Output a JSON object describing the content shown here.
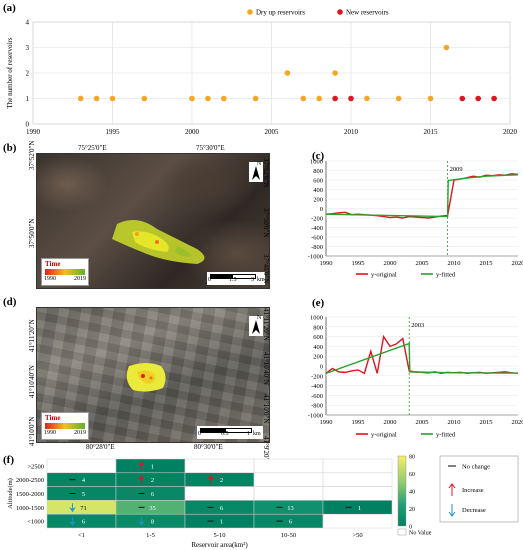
{
  "panel_a": {
    "label": "(a)",
    "legend": [
      {
        "name": "Dry up reservoirs",
        "color": "#f5a623"
      },
      {
        "name": "New reservoirs",
        "color": "#e0141e"
      }
    ],
    "ylabel": "The number of reservoirs",
    "yticks": [
      "0",
      "1",
      "2",
      "3",
      "4"
    ],
    "xticks": [
      "1990",
      "1995",
      "2000",
      "2005",
      "2010",
      "2015",
      "2020"
    ],
    "xlim": [
      1990,
      2020
    ],
    "ylim": [
      0,
      4
    ]
  },
  "panel_b": {
    "label": "(b)",
    "top_ticks": [
      "75°25'0\"E",
      "75°30'0\"E"
    ],
    "left_ticks": [
      "37°52'0\"N",
      "37°50'0\"N"
    ],
    "right_ticks": [
      "37°52'0\"N",
      "37°50'0\"N",
      "37°48'0\"N"
    ],
    "time_title": "Time",
    "time_start": "1990",
    "time_end": "2019",
    "scale_labels": [
      "0",
      "1.5",
      "3"
    ],
    "scale_unit": "km",
    "north": "N"
  },
  "panel_c": {
    "label": "(c)",
    "marker_year": "2009"
  },
  "panel_d": {
    "label": "(d)",
    "bottom_ticks": [
      "80°28'0\"E",
      "80°30'0\"E"
    ],
    "left_ticks": [
      "41°11'20\"N",
      "41°10'40\"N",
      "41°10'0\"N"
    ],
    "right_ticks": [
      "41°11'20\"N",
      "41°10'40\"N",
      "41°10'0\"N",
      "41°9'20\"N"
    ],
    "time_title": "Time",
    "time_start": "1990",
    "time_end": "2019",
    "scale_labels": [
      "0",
      "0.5",
      "1"
    ],
    "scale_unit": "km",
    "north": "N"
  },
  "panel_e": {
    "label": "(e)",
    "marker_year": "2003"
  },
  "panel_f": {
    "label": "(f)",
    "ylabel": "Altitude(m)",
    "xlabel": "Reservoir area(km²)",
    "rows": [
      ">2500",
      "2000-2500",
      "1500-2000",
      "1000-1500",
      "<1000"
    ],
    "cols": [
      "<1",
      "1-5",
      "5-10",
      "10-50",
      ">50"
    ],
    "colorbar_ticks": [
      "80",
      "60",
      "40",
      "20",
      "0"
    ],
    "legend": {
      "no_change": "No change",
      "increase": "Increase",
      "decrease": "Decrease",
      "no_value": "No Value"
    }
  },
  "chart_data": [
    {
      "type": "scatter",
      "title": "",
      "xlabel": "",
      "ylabel": "The number of reservoirs",
      "xlim": [
        1990,
        2020
      ],
      "ylim": [
        0,
        4
      ],
      "grid": true,
      "legend": "top",
      "series": [
        {
          "name": "Dry up reservoirs",
          "color": "#f5a623",
          "points": [
            [
              1993,
              1
            ],
            [
              1994,
              1
            ],
            [
              1995,
              1
            ],
            [
              1997,
              1
            ],
            [
              2000,
              1
            ],
            [
              2001,
              1
            ],
            [
              2002,
              1
            ],
            [
              2004,
              1
            ],
            [
              2006,
              2
            ],
            [
              2007,
              1
            ],
            [
              2008,
              1
            ],
            [
              2009,
              2
            ],
            [
              2011,
              1
            ],
            [
              2013,
              1
            ],
            [
              2015,
              1
            ],
            [
              2016,
              3
            ]
          ]
        },
        {
          "name": "New reservoirs",
          "color": "#e0141e",
          "points": [
            [
              2009,
              1
            ],
            [
              2010,
              1
            ],
            [
              2017,
              1
            ],
            [
              2018,
              1
            ],
            [
              2019,
              1
            ]
          ]
        }
      ]
    },
    {
      "type": "line",
      "title": "",
      "xlim": [
        1990,
        2020
      ],
      "ylim": [
        -1000,
        1000
      ],
      "xticks": [
        "1990",
        "1995",
        "2000",
        "2005",
        "2010",
        "2015",
        "2020"
      ],
      "yticks": [
        "1000",
        "800",
        "600",
        "400",
        "200",
        "0",
        "-200",
        "-400",
        "-600",
        "-800",
        "-1000"
      ],
      "legend": "bottom",
      "series": [
        {
          "name": "y-original",
          "color": "#e0141e",
          "x": [
            1990,
            1991,
            1992,
            1993,
            1994,
            1995,
            1996,
            1997,
            1998,
            1999,
            2000,
            2001,
            2002,
            2003,
            2004,
            2005,
            2006,
            2007,
            2008,
            2009,
            2010,
            2011,
            2012,
            2013,
            2014,
            2015,
            2016,
            2017,
            2018,
            2019,
            2020
          ],
          "values": [
            -120,
            -110,
            -90,
            -80,
            -130,
            -120,
            -130,
            -140,
            -150,
            -170,
            -190,
            -180,
            -200,
            -170,
            -180,
            -190,
            -200,
            -180,
            -160,
            -150,
            600,
            620,
            650,
            680,
            660,
            700,
            690,
            710,
            700,
            730,
            720
          ]
        },
        {
          "name": "y-fitted",
          "color": "#2ca02c",
          "x": [
            1990,
            2009,
            2009.1,
            2012,
            2015,
            2018,
            2020
          ],
          "values": [
            -120,
            -170,
            590,
            640,
            680,
            700,
            710
          ]
        }
      ]
    },
    {
      "type": "line",
      "title": "",
      "xlim": [
        1990,
        2020
      ],
      "ylim": [
        -1000,
        1000
      ],
      "xticks": [
        "1990",
        "1995",
        "2000",
        "2005",
        "2010",
        "2015",
        "2020"
      ],
      "yticks": [
        "1000",
        "800",
        "600",
        "400",
        "200",
        "0",
        "-200",
        "-400",
        "-600",
        "-800",
        "-1000"
      ],
      "legend": "bottom",
      "series": [
        {
          "name": "y-original",
          "color": "#e0141e",
          "x": [
            1990,
            1991,
            1992,
            1993,
            1994,
            1995,
            1996,
            1997,
            1998,
            1999,
            2000,
            2001,
            2002,
            2003,
            2004,
            2005,
            2006,
            2007,
            2008,
            2009,
            2010,
            2011,
            2012,
            2013,
            2014,
            2015,
            2016,
            2017,
            2018,
            2019,
            2020
          ],
          "values": [
            -150,
            -50,
            -120,
            -130,
            -100,
            -80,
            -150,
            300,
            -150,
            600,
            400,
            450,
            560,
            -100,
            -120,
            -130,
            -140,
            -120,
            -150,
            -130,
            -140,
            -130,
            -150,
            -140,
            -130,
            -150,
            -140,
            -130,
            -120,
            -140,
            -150
          ]
        },
        {
          "name": "y-fitted",
          "color": "#2ca02c",
          "x": [
            1990,
            2003,
            2003.1,
            2010,
            2020
          ],
          "values": [
            -150,
            460,
            -120,
            -140,
            -145
          ]
        }
      ]
    },
    {
      "type": "heatmap",
      "title": "",
      "rows": [
        ">2500",
        "2000-2500",
        "1500-2000",
        "1000-1500",
        "<1000"
      ],
      "cols": [
        "<1",
        "1-5",
        "5-10",
        "10-50",
        ">50"
      ],
      "zlim": [
        0,
        80
      ],
      "cells": [
        [
          null,
          {
            "v": 1,
            "t": "increase"
          },
          null,
          null,
          null
        ],
        [
          {
            "v": 4,
            "t": "nochange"
          },
          {
            "v": 2,
            "t": "increase"
          },
          {
            "v": 2,
            "t": "increase"
          },
          null,
          null
        ],
        [
          {
            "v": 5,
            "t": "nochange"
          },
          {
            "v": 6,
            "t": "nochange"
          },
          null,
          null,
          null
        ],
        [
          {
            "v": 71,
            "t": "decrease"
          },
          {
            "v": 35,
            "t": "nochange"
          },
          {
            "v": 6,
            "t": "nochange"
          },
          {
            "v": 13,
            "t": "nochange"
          },
          {
            "v": 1,
            "t": "nochange"
          }
        ],
        [
          {
            "v": 6,
            "t": "decrease"
          },
          {
            "v": 8,
            "t": "decrease"
          },
          {
            "v": 1,
            "t": "nochange"
          },
          {
            "v": 6,
            "t": "nochange"
          },
          null
        ]
      ]
    }
  ]
}
